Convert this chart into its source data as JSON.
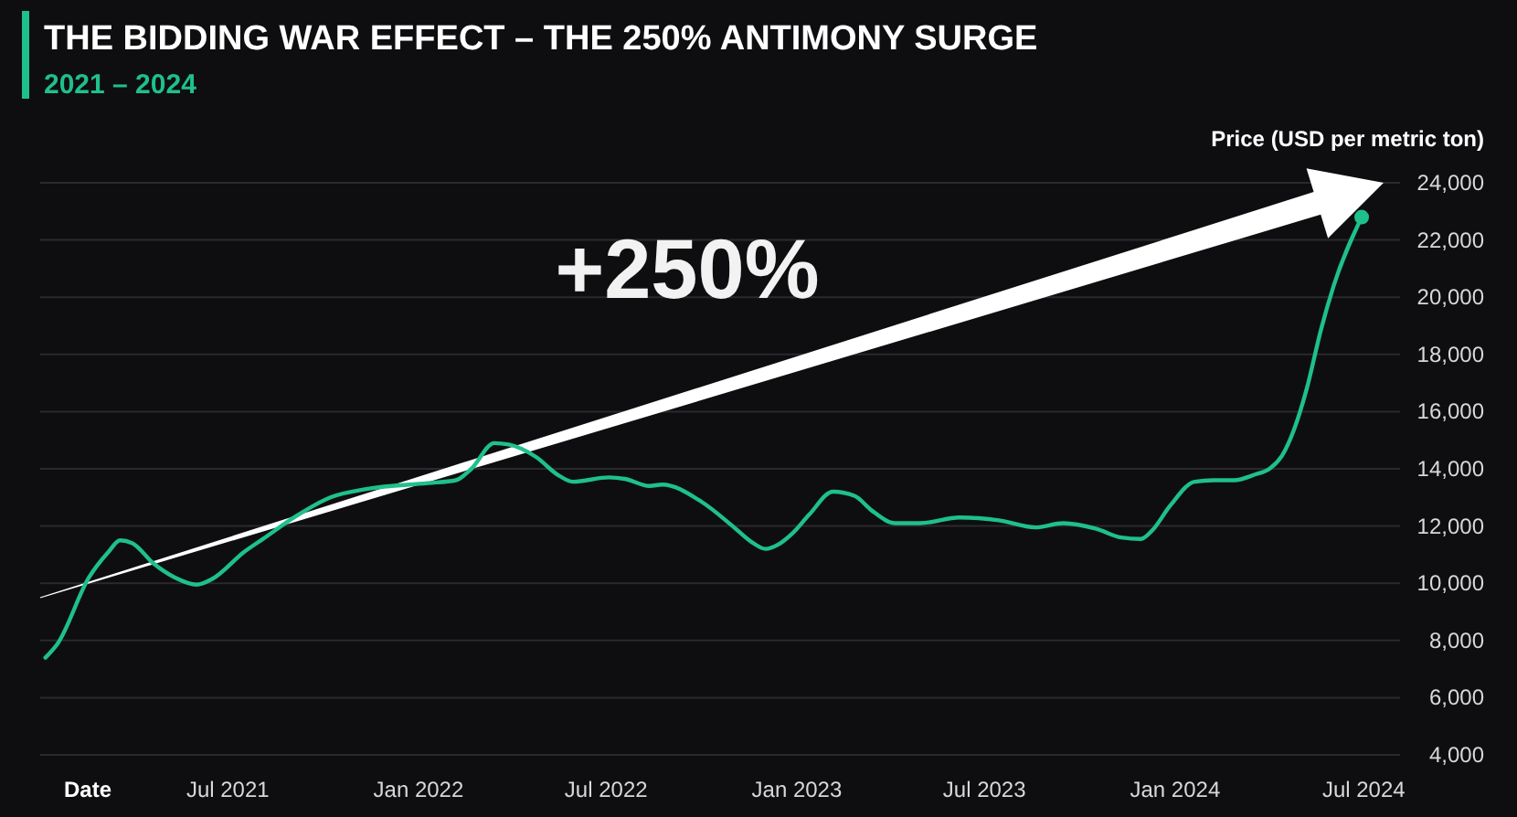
{
  "chart_data": {
    "type": "line",
    "title": "THE BIDDING WAR EFFECT – THE 250% ANTIMONY SURGE",
    "subtitle": "2021 – 2024",
    "xlabel": "Date",
    "ylabel": "Price (USD per metric ton)",
    "annotations": [
      "+250%"
    ],
    "x": [
      "2021-01-06",
      "2021-01-18",
      "2021-02-17",
      "2021-03-08",
      "2021-03-19",
      "2021-03-31",
      "2021-04-20",
      "2021-05-11",
      "2021-06-01",
      "2021-06-16",
      "2021-07-17",
      "2021-08-04",
      "2021-09-03",
      "2021-10-08",
      "2021-11-13",
      "2022-01-10",
      "2022-02-06",
      "2022-02-21",
      "2022-03-15",
      "2022-03-29",
      "2022-04-25",
      "2022-05-15",
      "2022-05-30",
      "2022-07-04",
      "2022-07-19",
      "2022-08-12",
      "2022-08-24",
      "2022-10-01",
      "2022-10-31",
      "2022-11-18",
      "2022-12-02",
      "2022-12-14",
      "2022-12-28",
      "2023-01-13",
      "2023-02-05",
      "2023-02-26",
      "2023-03-14",
      "2023-04-06",
      "2023-04-30",
      "2023-06-07",
      "2023-07-15",
      "2023-08-19",
      "2023-09-15",
      "2023-10-17",
      "2023-11-10",
      "2023-11-29",
      "2023-12-10",
      "2023-12-27",
      "2024-01-20",
      "2024-02-07",
      "2024-02-27",
      "2024-03-18",
      "2024-04-01",
      "2024-04-13",
      "2024-04-25",
      "2024-05-07",
      "2024-05-21",
      "2024-06-02",
      "2024-06-29"
    ],
    "series": [
      {
        "color": "#1fc08a",
        "values": [
          7400,
          7900,
          10200,
          11100,
          11500,
          11400,
          10700,
          10200,
          9950,
          10150,
          11100,
          11550,
          12300,
          13000,
          13300,
          13500,
          13600,
          14000,
          14900,
          14850,
          14400,
          13800,
          13550,
          13700,
          13650,
          13400,
          13450,
          12850,
          12000,
          11450,
          11200,
          11350,
          11750,
          12400,
          13200,
          13050,
          12550,
          12100,
          12100,
          12300,
          12200,
          11950,
          12100,
          11900,
          11600,
          11550,
          11850,
          12700,
          13550,
          13600,
          13600,
          13800,
          14000,
          14450,
          15400,
          16800,
          18900,
          20400,
          22800
        ]
      }
    ],
    "xlim": [
      "2021-01-01",
      "2024-08-05"
    ],
    "xticks": [
      {
        "value": "2021-07-01",
        "label": "Jul 2021"
      },
      {
        "value": "2022-01-01",
        "label": "Jan 2022"
      },
      {
        "value": "2022-07-01",
        "label": "Jul 2022"
      },
      {
        "value": "2023-01-01",
        "label": "Jan 2023"
      },
      {
        "value": "2023-07-01",
        "label": "Jul 2023"
      },
      {
        "value": "2024-01-01",
        "label": "Jan 2024"
      },
      {
        "value": "2024-07-01",
        "label": "Jul 2024"
      }
    ],
    "ylim": [
      4000,
      24000
    ],
    "yticks": [
      {
        "value": 4000,
        "label": "4,000"
      },
      {
        "value": 6000,
        "label": "6,000"
      },
      {
        "value": 8000,
        "label": "8,000"
      },
      {
        "value": 10000,
        "label": "10,000"
      },
      {
        "value": 12000,
        "label": "12,000"
      },
      {
        "value": 14000,
        "label": "14,000"
      },
      {
        "value": 16000,
        "label": "16,000"
      },
      {
        "value": 18000,
        "label": "18,000"
      },
      {
        "value": 20000,
        "label": "20,000"
      },
      {
        "value": 22000,
        "label": "22,000"
      },
      {
        "value": 24000,
        "label": "24,000"
      }
    ],
    "grid": "y"
  }
}
